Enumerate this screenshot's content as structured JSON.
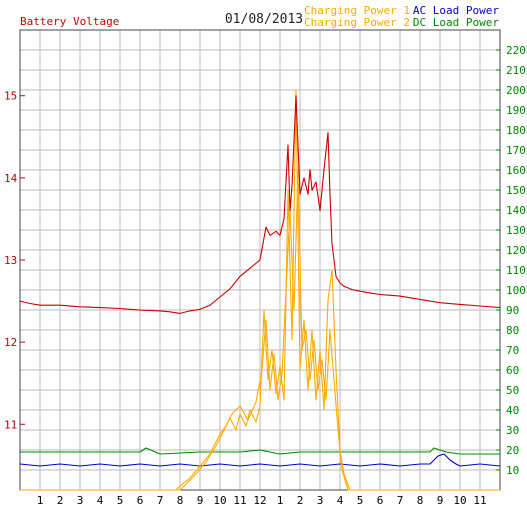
{
  "chart_data": {
    "type": "line",
    "title": "01/08/2013",
    "left_axis": {
      "label": "Battery Voltage",
      "color": "#cc0000",
      "min": 10.2,
      "max": 15.8,
      "ticks": [
        11,
        12,
        13,
        14,
        15
      ]
    },
    "right_axis": {
      "color": "#008800",
      "min": 0,
      "max": 230,
      "ticks": [
        10,
        20,
        30,
        40,
        50,
        60,
        70,
        80,
        90,
        100,
        110,
        120,
        130,
        140,
        150,
        160,
        170,
        180,
        190,
        200,
        210,
        220
      ]
    },
    "x_axis": {
      "min": 0,
      "max": 24,
      "tick_labels": [
        "1",
        "2",
        "3",
        "4",
        "5",
        "6",
        "7",
        "8",
        "9",
        "10",
        "11",
        "12",
        "1",
        "2",
        "3",
        "4",
        "5",
        "6",
        "7",
        "8",
        "9",
        "10",
        "11"
      ]
    },
    "grid": true,
    "legend": [
      {
        "name": "Charging Power 1",
        "color": "#ffaa00"
      },
      {
        "name": "AC Load Power",
        "color": "#0000cc"
      },
      {
        "name": "Charging Power 2",
        "color": "#ffaa00"
      },
      {
        "name": "DC Load Power",
        "color": "#008800"
      }
    ],
    "series": [
      {
        "name": "Battery Voltage",
        "axis": "left",
        "color": "#cc0000",
        "x": [
          0,
          0.5,
          1,
          2,
          3,
          4,
          5,
          6,
          7,
          7.5,
          8,
          8.5,
          9,
          9.5,
          10,
          10.5,
          11,
          11.5,
          12,
          12.3,
          12.5,
          12.8,
          13,
          13.2,
          13.4,
          13.5,
          13.6,
          13.8,
          14,
          14.2,
          14.4,
          14.5,
          14.6,
          14.8,
          15,
          15.2,
          15.4,
          15.5,
          15.6,
          15.8,
          16,
          16.2,
          16.4,
          16.6,
          17,
          17.5,
          18,
          19,
          20,
          21,
          22,
          23,
          24
        ],
        "y": [
          12.5,
          12.47,
          12.45,
          12.45,
          12.43,
          12.42,
          12.41,
          12.39,
          12.38,
          12.37,
          12.35,
          12.38,
          12.4,
          12.45,
          12.55,
          12.65,
          12.8,
          12.9,
          13.0,
          13.4,
          13.3,
          13.35,
          13.3,
          13.5,
          14.4,
          13.6,
          13.9,
          15.0,
          13.8,
          14.0,
          13.8,
          14.1,
          13.85,
          13.95,
          13.6,
          14.1,
          14.55,
          13.8,
          13.2,
          12.8,
          12.72,
          12.68,
          12.66,
          12.64,
          12.62,
          12.6,
          12.58,
          12.56,
          12.52,
          12.48,
          12.46,
          12.44,
          12.42
        ]
      },
      {
        "name": "Charging Power 1",
        "axis": "right",
        "color": "#ffaa00",
        "x": [
          0,
          7.8,
          8,
          8.5,
          9,
          9.5,
          10,
          10.3,
          10.5,
          10.8,
          11,
          11.3,
          11.5,
          11.8,
          12,
          12.2,
          12.4,
          12.6,
          12.8,
          13,
          13.2,
          13.4,
          13.6,
          13.8,
          14,
          14.2,
          14.4,
          14.6,
          14.8,
          15,
          15.2,
          15.4,
          15.6,
          15.8,
          16,
          16.2,
          16.5,
          24
        ],
        "y": [
          0,
          0,
          2,
          6,
          12,
          18,
          28,
          32,
          36,
          30,
          38,
          32,
          40,
          34,
          42,
          90,
          55,
          70,
          48,
          62,
          45,
          150,
          75,
          200,
          60,
          85,
          50,
          80,
          45,
          70,
          40,
          95,
          110,
          60,
          20,
          8,
          0,
          0
        ]
      },
      {
        "name": "Charging Power 2",
        "axis": "right",
        "color": "#ffaa00",
        "x": [
          0,
          8,
          8.3,
          8.8,
          9.3,
          9.8,
          10.2,
          10.6,
          11,
          11.4,
          11.8,
          12.1,
          12.3,
          12.5,
          12.7,
          12.9,
          13.1,
          13.3,
          13.5,
          13.7,
          13.9,
          14.1,
          14.3,
          14.5,
          14.7,
          14.9,
          15.1,
          15.3,
          15.5,
          15.7,
          15.9,
          16.1,
          16.4,
          24
        ],
        "y": [
          0,
          0,
          3,
          8,
          14,
          22,
          30,
          38,
          42,
          35,
          44,
          60,
          85,
          50,
          68,
          45,
          58,
          100,
          140,
          90,
          160,
          70,
          80,
          55,
          75,
          50,
          65,
          45,
          80,
          55,
          30,
          10,
          0,
          0
        ]
      },
      {
        "name": "AC Load Power",
        "axis": "right",
        "color": "#0000cc",
        "x": [
          0,
          1,
          2,
          3,
          4,
          5,
          6,
          7,
          8,
          9,
          10,
          11,
          12,
          13,
          14,
          15,
          16,
          17,
          18,
          19,
          20,
          20.5,
          20.9,
          21.2,
          21.5,
          21.8,
          22,
          23,
          24
        ],
        "y": [
          13,
          12,
          13,
          12,
          13,
          12,
          13,
          12,
          13,
          12,
          13,
          12,
          13,
          12,
          13,
          12,
          13,
          12,
          13,
          12,
          13,
          13,
          17,
          18,
          15,
          13,
          12,
          13,
          12
        ]
      },
      {
        "name": "DC Load Power",
        "axis": "right",
        "color": "#008800",
        "x": [
          0,
          2,
          4,
          6,
          6.3,
          7,
          9,
          11,
          12,
          13,
          14,
          16,
          18,
          20,
          20.5,
          20.7,
          21,
          21.3,
          22,
          24
        ],
        "y": [
          19,
          19,
          19,
          19,
          21,
          18,
          19,
          19,
          20,
          18,
          19,
          19,
          19,
          19,
          19,
          21,
          20,
          19,
          18,
          18
        ]
      }
    ]
  }
}
